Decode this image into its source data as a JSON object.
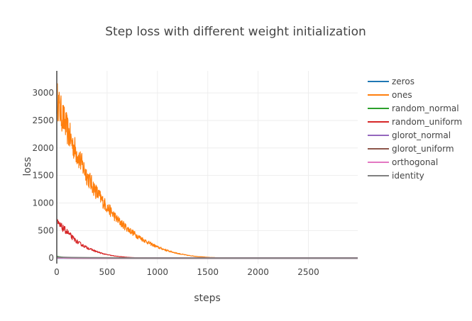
{
  "chart_data": {
    "type": "line",
    "title": "Step loss with different weight initialization",
    "xlabel": "steps",
    "ylabel": "loss",
    "xlim": [
      0,
      2990
    ],
    "ylim": [
      -100,
      3400
    ],
    "x_ticks": [
      0,
      500,
      1000,
      1500,
      2000,
      2500
    ],
    "y_ticks": [
      0,
      500,
      1000,
      1500,
      2000,
      2500,
      3000
    ],
    "grid": true,
    "legend_position": "top-right",
    "series": [
      {
        "name": "zeros",
        "color": "#1f77b4",
        "x": [
          0,
          2990
        ],
        "y": [
          0,
          0
        ]
      },
      {
        "name": "ones",
        "color": "#ff7f0e",
        "x": [
          0,
          30,
          60,
          100,
          150,
          200,
          250,
          300,
          350,
          400,
          450,
          500,
          550,
          600,
          700,
          800,
          900,
          1000,
          1100,
          1200,
          1300,
          1400,
          1500,
          1600,
          1700,
          1800,
          2000,
          2500,
          2990
        ],
        "y": [
          2900,
          2700,
          2550,
          2350,
          2100,
          1900,
          1700,
          1500,
          1330,
          1180,
          1050,
          920,
          820,
          700,
          540,
          400,
          290,
          200,
          135,
          85,
          50,
          28,
          15,
          7,
          3,
          1,
          0,
          0,
          0
        ],
        "noise": 0.12
      },
      {
        "name": "random_normal",
        "color": "#2ca02c",
        "x": [
          0,
          20,
          60,
          100,
          200,
          300,
          2990
        ],
        "y": [
          30,
          22,
          12,
          6,
          2,
          0,
          0
        ]
      },
      {
        "name": "random_uniform",
        "color": "#d62728",
        "x": [
          0,
          10,
          50,
          100,
          150,
          200,
          250,
          300,
          350,
          400,
          450,
          500,
          550,
          600,
          700,
          800,
          900,
          1000,
          2990
        ],
        "y": [
          720,
          620,
          560,
          480,
          380,
          300,
          240,
          190,
          150,
          115,
          85,
          62,
          45,
          32,
          15,
          6,
          2,
          0,
          0
        ],
        "noise": 0.12
      },
      {
        "name": "glorot_normal",
        "color": "#9467bd",
        "x": [
          0,
          100,
          300,
          2990
        ],
        "y": [
          8,
          3,
          0,
          0
        ]
      },
      {
        "name": "glorot_uniform",
        "color": "#8c564b",
        "x": [
          0,
          100,
          300,
          2990
        ],
        "y": [
          6,
          2,
          0,
          0
        ]
      },
      {
        "name": "orthogonal",
        "color": "#e377c2",
        "x": [
          0,
          100,
          300,
          2990
        ],
        "y": [
          5,
          2,
          0,
          0
        ]
      },
      {
        "name": "identity",
        "color": "#7f7f7f",
        "x": [
          0,
          50,
          150,
          400,
          600,
          800,
          2990
        ],
        "y": [
          20,
          15,
          10,
          6,
          3,
          1,
          0
        ]
      }
    ]
  }
}
